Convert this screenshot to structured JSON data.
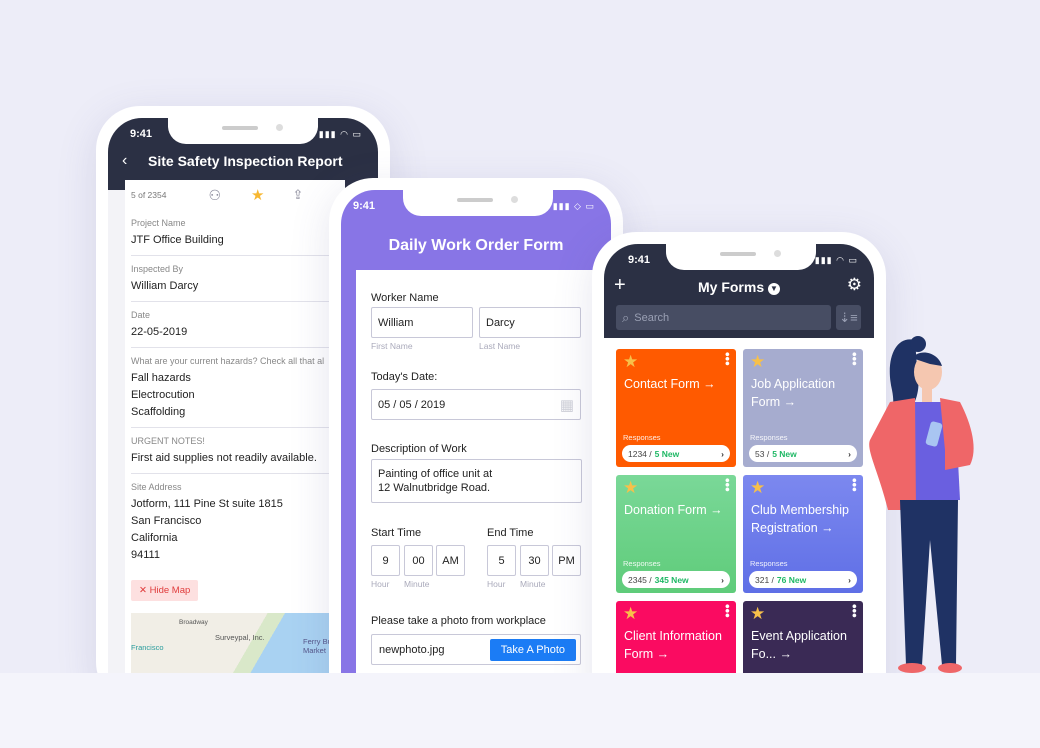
{
  "colors": {
    "dark_header": "#2b3044",
    "purple": "#8875e6",
    "blue_button": "#1b7cf5",
    "new_green": "#1fb865"
  },
  "phone1": {
    "time": "9:41",
    "title": "Site Safety Inspection Report",
    "back_icon": "chevron-left",
    "counter": "5 of 2354",
    "fields": [
      {
        "label": "Project Name",
        "values": [
          "JTF Office Building"
        ]
      },
      {
        "label": "Inspected By",
        "values": [
          "William Darcy"
        ]
      },
      {
        "label": "Date",
        "values": [
          "22-05-2019"
        ]
      },
      {
        "label": "What are your current hazards? Check all that al",
        "values": [
          "Fall hazards",
          "Electrocution",
          "Scaffolding"
        ]
      },
      {
        "label": "URGENT NOTES!",
        "values": [
          "First aid supplies not readily available."
        ]
      },
      {
        "label": "Site Address",
        "values": [
          "Jotform, 111 Pine St suite 1815",
          "San Francisco",
          "California",
          "94111"
        ]
      }
    ],
    "hide_map": "Hide Map",
    "map_labels": {
      "street": "Broadway",
      "place": "Surveypal, Inc.",
      "city": "Francisco",
      "market": "Ferry Bu Market"
    }
  },
  "phone2": {
    "time": "9:41",
    "title": "Daily Work Order Form",
    "worker_label": "Worker Name",
    "first": "William",
    "last": "Darcy",
    "first_sub": "First Name",
    "last_sub": "Last Name",
    "date_label": "Today's Date:",
    "date": "05 / 05 / 2019",
    "desc_label": "Description of Work",
    "desc1": "Painting of office unit at",
    "desc2": "12 Walnutbridge Road.",
    "start_label": "Start Time",
    "end_label": "End Time",
    "start": {
      "hour": "9",
      "minute": "00",
      "ampm": "AM"
    },
    "end": {
      "hour": "5",
      "minute": "30",
      "ampm": "PM"
    },
    "hour_sub": "Hour",
    "minute_sub": "Minute",
    "photo_label": "Please take a photo from workplace",
    "photo_file": "newphoto.jpg",
    "photo_button": "Take A Photo"
  },
  "phone3": {
    "time": "9:41",
    "title": "My Forms",
    "search_placeholder": "Search",
    "cards": [
      {
        "title": "Contact Form →",
        "responses_label": "Responses",
        "count": "1234 /",
        "new": "5 New",
        "color": "#ff5a00"
      },
      {
        "title": "Job Application Form →",
        "responses_label": "Responses",
        "count": "53 /",
        "new": "5 New",
        "color": "#a6accf"
      },
      {
        "title": "Donation Form →",
        "responses_label": "Responses",
        "count": "2345 /",
        "new": "345 New",
        "color": "#5fcc7a"
      },
      {
        "title": "Club Membership Registration →",
        "responses_label": "Responses",
        "count": "321 /",
        "new": "76 New",
        "color": "#5f6fe6"
      },
      {
        "title": "Client Information Form →",
        "color": "#fa0b61"
      },
      {
        "title": "Event Application Fo... →",
        "color": "#3a2a55"
      }
    ]
  }
}
